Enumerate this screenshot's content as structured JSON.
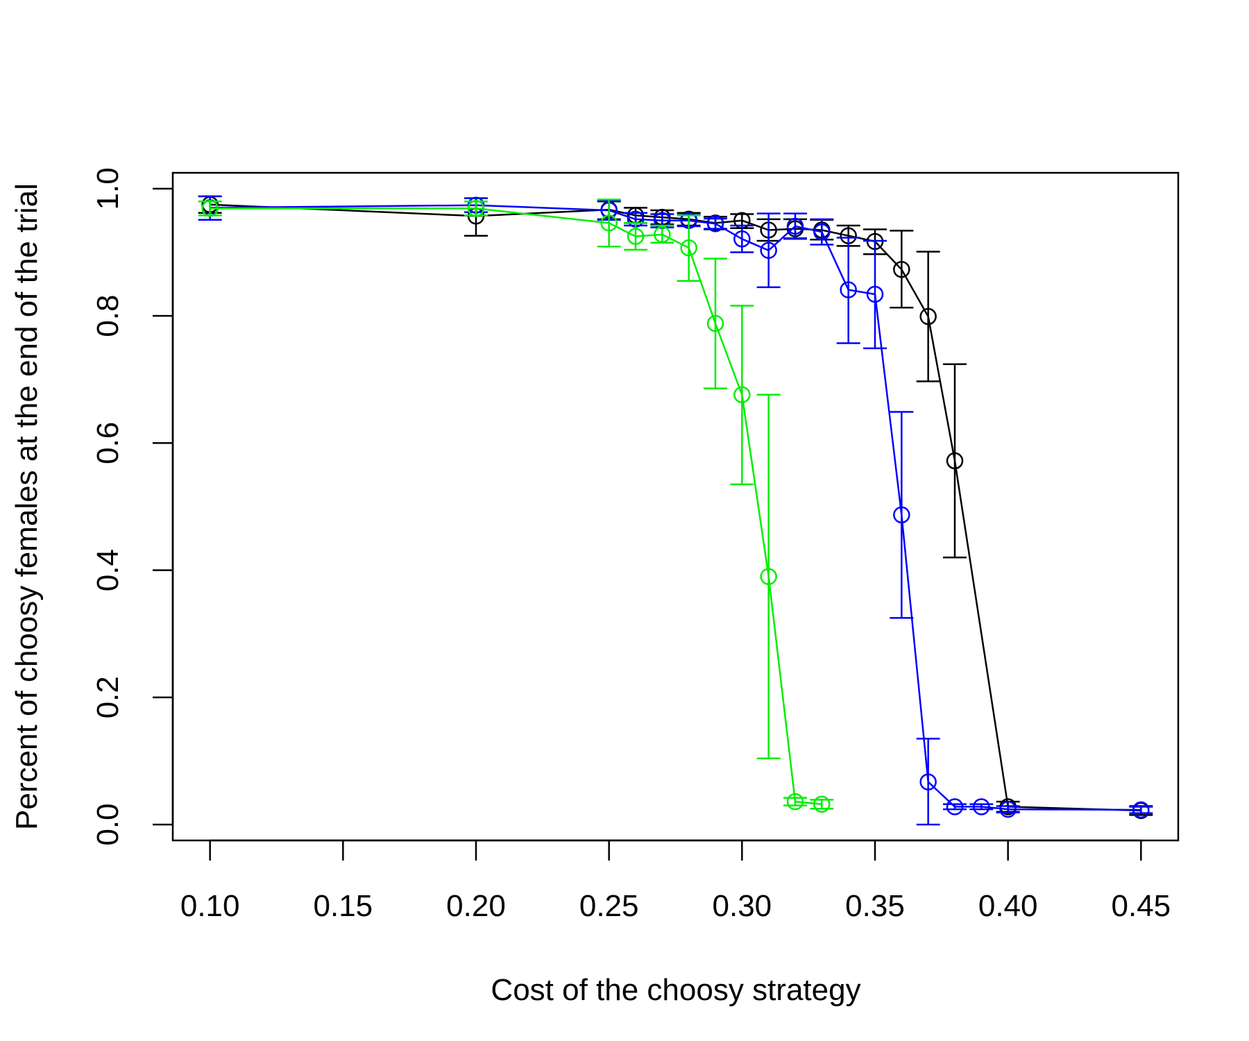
{
  "chart_data": {
    "type": "line",
    "title": "",
    "xlabel": "Cost of the choosy strategy",
    "ylabel": "Percent of choosy females at the end of the trial",
    "xlim": [
      0.086,
      0.464
    ],
    "ylim": [
      -0.025,
      1.025
    ],
    "xticks": [
      "0.10",
      "0.15",
      "0.20",
      "0.25",
      "0.30",
      "0.35",
      "0.40",
      "0.45"
    ],
    "yticks": [
      "0.0",
      "0.2",
      "0.4",
      "0.6",
      "0.8",
      "1.0"
    ],
    "grid": false,
    "legend": null,
    "series": [
      {
        "name": "black",
        "color": "#000000",
        "points": [
          {
            "x": 0.1,
            "y": 0.975,
            "lo": 0.962,
            "hi": 0.988
          },
          {
            "x": 0.2,
            "y": 0.957,
            "lo": 0.926,
            "hi": 0.985
          },
          {
            "x": 0.25,
            "y": 0.967,
            "lo": 0.952,
            "hi": 0.98
          },
          {
            "x": 0.26,
            "y": 0.958,
            "lo": 0.946,
            "hi": 0.97
          },
          {
            "x": 0.27,
            "y": 0.955,
            "lo": 0.944,
            "hi": 0.966
          },
          {
            "x": 0.28,
            "y": 0.952,
            "lo": 0.942,
            "hi": 0.962
          },
          {
            "x": 0.29,
            "y": 0.946,
            "lo": 0.936,
            "hi": 0.956
          },
          {
            "x": 0.3,
            "y": 0.95,
            "lo": 0.938,
            "hi": 0.96
          },
          {
            "x": 0.31,
            "y": 0.935,
            "lo": 0.918,
            "hi": 0.952
          },
          {
            "x": 0.32,
            "y": 0.937,
            "lo": 0.922,
            "hi": 0.952
          },
          {
            "x": 0.33,
            "y": 0.935,
            "lo": 0.92,
            "hi": 0.951
          },
          {
            "x": 0.34,
            "y": 0.926,
            "lo": 0.91,
            "hi": 0.942
          },
          {
            "x": 0.35,
            "y": 0.917,
            "lo": 0.897,
            "hi": 0.936
          },
          {
            "x": 0.36,
            "y": 0.873,
            "lo": 0.813,
            "hi": 0.934
          },
          {
            "x": 0.37,
            "y": 0.799,
            "lo": 0.697,
            "hi": 0.901
          },
          {
            "x": 0.38,
            "y": 0.572,
            "lo": 0.42,
            "hi": 0.724
          },
          {
            "x": 0.4,
            "y": 0.028,
            "lo": 0.02,
            "hi": 0.036
          },
          {
            "x": 0.45,
            "y": 0.022,
            "lo": 0.015,
            "hi": 0.029
          }
        ]
      },
      {
        "name": "blue",
        "color": "#0000ff",
        "points": [
          {
            "x": 0.1,
            "y": 0.97,
            "lo": 0.951,
            "hi": 0.988
          },
          {
            "x": 0.2,
            "y": 0.974,
            "lo": 0.963,
            "hi": 0.985
          },
          {
            "x": 0.25,
            "y": 0.966,
            "lo": 0.951,
            "hi": 0.981
          },
          {
            "x": 0.26,
            "y": 0.952,
            "lo": 0.942,
            "hi": 0.962
          },
          {
            "x": 0.27,
            "y": 0.95,
            "lo": 0.939,
            "hi": 0.96
          },
          {
            "x": 0.28,
            "y": 0.95,
            "lo": 0.941,
            "hi": 0.959
          },
          {
            "x": 0.29,
            "y": 0.945,
            "lo": 0.937,
            "hi": 0.953
          },
          {
            "x": 0.3,
            "y": 0.921,
            "lo": 0.9,
            "hi": 0.942
          },
          {
            "x": 0.31,
            "y": 0.903,
            "lo": 0.845,
            "hi": 0.961
          },
          {
            "x": 0.32,
            "y": 0.941,
            "lo": 0.921,
            "hi": 0.961
          },
          {
            "x": 0.33,
            "y": 0.932,
            "lo": 0.912,
            "hi": 0.952
          },
          {
            "x": 0.34,
            "y": 0.841,
            "lo": 0.757,
            "hi": 0.923
          },
          {
            "x": 0.35,
            "y": 0.834,
            "lo": 0.749,
            "hi": 0.918
          },
          {
            "x": 0.36,
            "y": 0.487,
            "lo": 0.325,
            "hi": 0.649
          },
          {
            "x": 0.37,
            "y": 0.067,
            "lo": 0.0,
            "hi": 0.135
          },
          {
            "x": 0.38,
            "y": 0.028,
            "lo": 0.024,
            "hi": 0.032
          },
          {
            "x": 0.39,
            "y": 0.028,
            "lo": 0.024,
            "hi": 0.032
          },
          {
            "x": 0.4,
            "y": 0.024,
            "lo": 0.019,
            "hi": 0.029
          },
          {
            "x": 0.45,
            "y": 0.023,
            "lo": 0.018,
            "hi": 0.028
          }
        ]
      },
      {
        "name": "green",
        "color": "#00ee00",
        "points": [
          {
            "x": 0.1,
            "y": 0.969,
            "lo": 0.958,
            "hi": 0.98
          },
          {
            "x": 0.2,
            "y": 0.969,
            "lo": 0.958,
            "hi": 0.98
          },
          {
            "x": 0.25,
            "y": 0.946,
            "lo": 0.909,
            "hi": 0.983
          },
          {
            "x": 0.26,
            "y": 0.925,
            "lo": 0.904,
            "hi": 0.946
          },
          {
            "x": 0.27,
            "y": 0.928,
            "lo": 0.915,
            "hi": 0.942
          },
          {
            "x": 0.28,
            "y": 0.907,
            "lo": 0.855,
            "hi": 0.958
          },
          {
            "x": 0.29,
            "y": 0.788,
            "lo": 0.686,
            "hi": 0.89
          },
          {
            "x": 0.3,
            "y": 0.676,
            "lo": 0.535,
            "hi": 0.816
          },
          {
            "x": 0.31,
            "y": 0.39,
            "lo": 0.104,
            "hi": 0.676
          },
          {
            "x": 0.32,
            "y": 0.036,
            "lo": 0.03,
            "hi": 0.042
          },
          {
            "x": 0.33,
            "y": 0.032,
            "lo": 0.025,
            "hi": 0.039
          }
        ]
      }
    ]
  }
}
